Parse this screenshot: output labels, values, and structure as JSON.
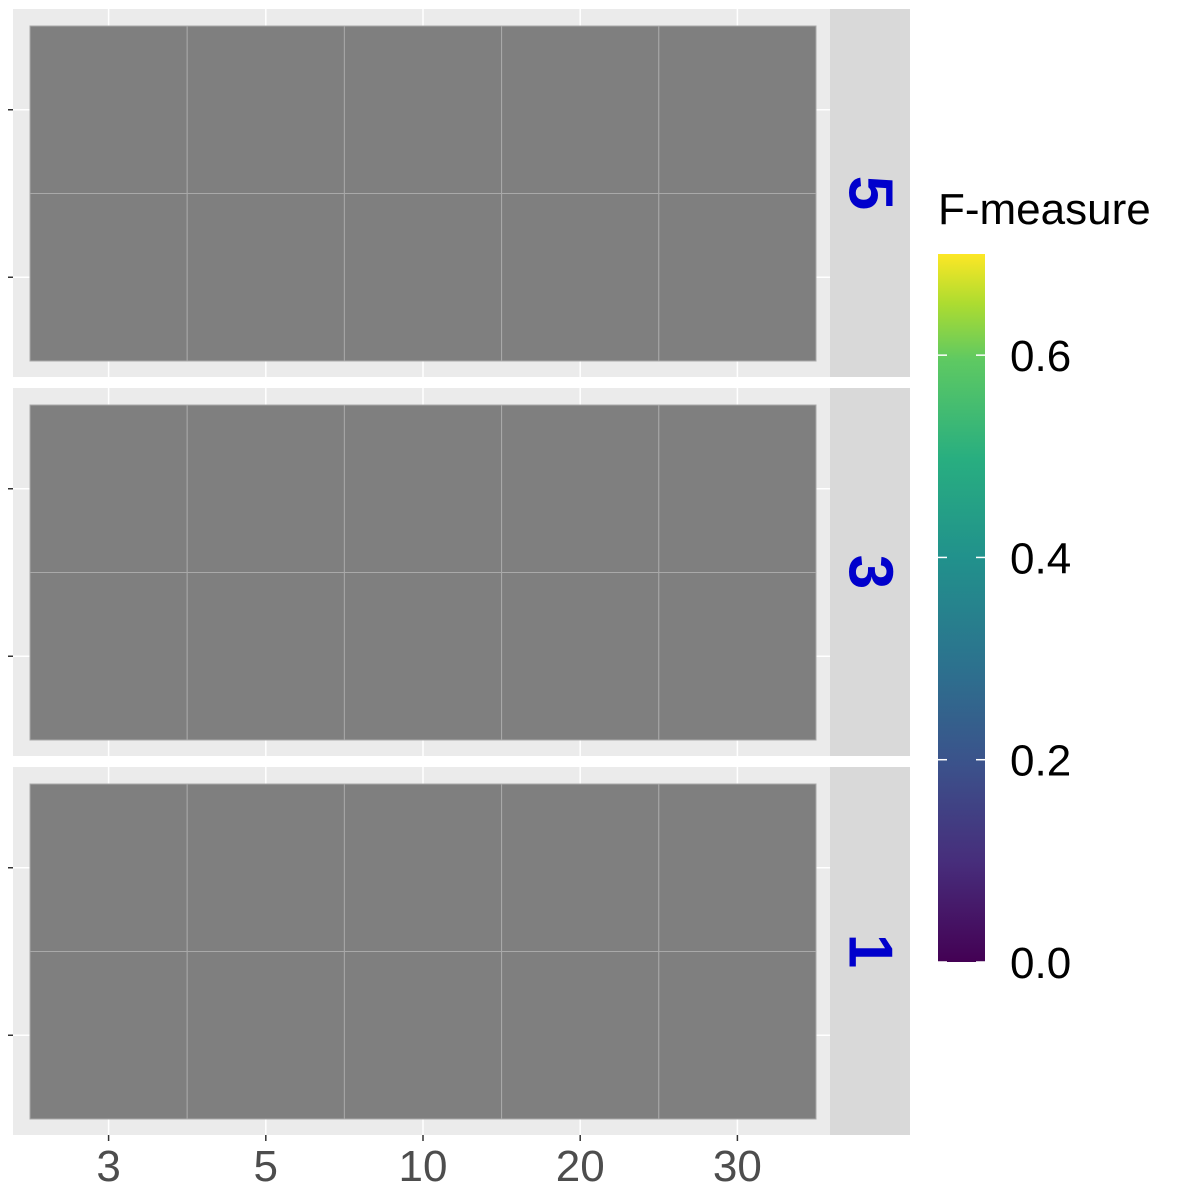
{
  "chart_data": {
    "type": "heatmap",
    "facet_variable_values": [
      "5",
      "3",
      "1"
    ],
    "x_tick_labels": [
      "3",
      "5",
      "10",
      "20",
      "30"
    ],
    "y_tick_labels": [
      "",
      ""
    ],
    "cells_color": "#7f7f7f",
    "cells_values": "NA",
    "legend": {
      "title": "F-measure",
      "placement": "right",
      "ticks": [
        0.0,
        0.2,
        0.4,
        0.6
      ],
      "tick_labels": [
        "0.0",
        "0.2",
        "0.4",
        "0.6"
      ],
      "range": [
        0,
        0.7
      ],
      "palette": "viridis"
    },
    "grid": true
  },
  "colors": {
    "panel_background": "#ebebeb",
    "strip_background": "#d9d9d9",
    "strip_text": "#0000cc",
    "grid_line": "#ffffff",
    "tick_text": "#4d4d4d",
    "legend_text": "#000000"
  }
}
